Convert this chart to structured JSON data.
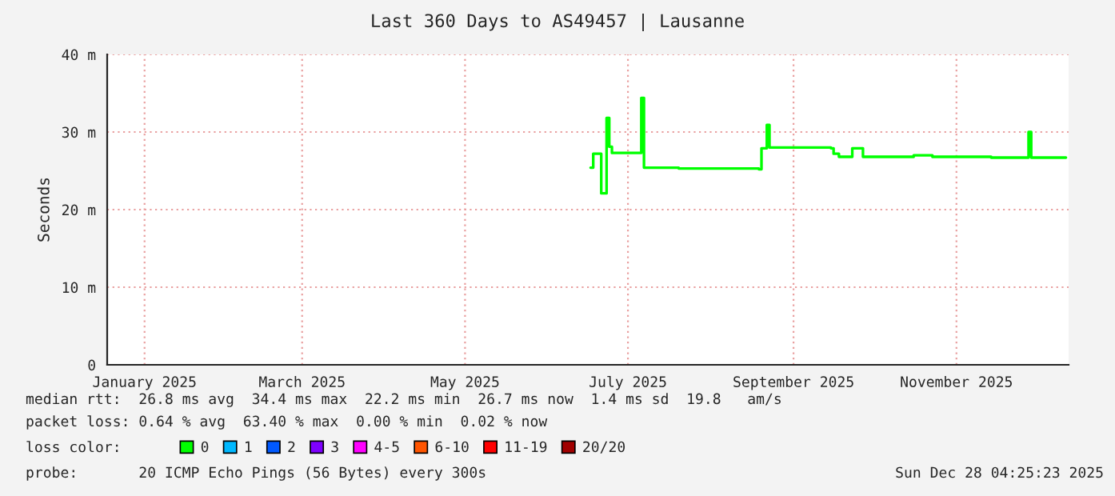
{
  "chart_data": {
    "type": "step",
    "title": "Last 360 Days to AS49457 | Lausanne",
    "ylabel": "Seconds",
    "x": [
      "2025-07-02",
      "2025-07-03",
      "2025-07-05",
      "2025-07-06",
      "2025-07-07",
      "2025-07-08",
      "2025-07-09",
      "2025-07-10",
      "2025-07-20",
      "2025-07-21",
      "2025-07-22",
      "2025-08-04",
      "2025-09-03",
      "2025-09-04",
      "2025-09-06",
      "2025-09-07",
      "2025-09-30",
      "2025-10-01",
      "2025-10-03",
      "2025-10-08",
      "2025-10-12",
      "2025-10-30",
      "2025-10-31",
      "2025-11-07",
      "2025-11-29",
      "2025-12-12",
      "2025-12-13",
      "2025-12-14",
      "2025-12-27"
    ],
    "series": [
      {
        "name": "0",
        "color": "#00ff00",
        "values": [
          25.4,
          27.2,
          27.2,
          22.1,
          22.1,
          31.8,
          28.1,
          27.3,
          27.3,
          34.4,
          25.4,
          25.3,
          25.2,
          27.9,
          30.9,
          28.0,
          27.9,
          27.2,
          26.8,
          27.9,
          26.8,
          26.8,
          27.0,
          26.8,
          26.7,
          26.7,
          30.0,
          26.7,
          26.7
        ]
      },
      {
        "name": "1",
        "color": "#00b8ff",
        "values": [
          null,
          null,
          null,
          null,
          null,
          null,
          null,
          null,
          null,
          null,
          null,
          null,
          null,
          null,
          null,
          null,
          null,
          null,
          null,
          null,
          null,
          null,
          null,
          null,
          null,
          null,
          null,
          null,
          null
        ]
      },
      {
        "name": "2",
        "color": "#0059ff",
        "values": [
          null,
          null,
          null,
          null,
          null,
          null,
          null,
          null,
          null,
          null,
          null,
          null,
          null,
          null,
          null,
          null,
          null,
          null,
          null,
          null,
          null,
          null,
          null,
          null,
          null,
          null,
          null,
          null,
          null
        ]
      },
      {
        "name": "3",
        "color": "#7e00ff",
        "values": [
          null,
          null,
          null,
          null,
          null,
          null,
          null,
          null,
          null,
          null,
          null,
          null,
          null,
          null,
          null,
          null,
          null,
          null,
          null,
          null,
          null,
          null,
          null,
          null,
          null,
          null,
          null,
          null,
          null
        ]
      },
      {
        "name": "4-5",
        "color": "#ff00ff",
        "values": [
          null,
          null,
          null,
          null,
          null,
          null,
          null,
          null,
          null,
          null,
          null,
          null,
          null,
          null,
          null,
          null,
          null,
          null,
          null,
          null,
          null,
          null,
          null,
          null,
          null,
          null,
          null,
          null,
          null
        ]
      },
      {
        "name": "6-10",
        "color": "#ff5500",
        "values": [
          null,
          null,
          null,
          null,
          null,
          null,
          null,
          null,
          null,
          null,
          null,
          null,
          null,
          null,
          null,
          null,
          null,
          null,
          null,
          null,
          null,
          null,
          null,
          null,
          null,
          null,
          null,
          null,
          null
        ]
      },
      {
        "name": "11-19",
        "color": "#ff0000",
        "values": [
          null,
          null,
          null,
          null,
          null,
          null,
          null,
          null,
          null,
          null,
          null,
          null,
          null,
          null,
          null,
          null,
          null,
          null,
          null,
          null,
          null,
          null,
          null,
          null,
          null,
          null,
          null,
          null,
          null
        ]
      },
      {
        "name": "20/20",
        "color": "#a10000",
        "values": [
          null,
          null,
          null,
          null,
          null,
          null,
          null,
          null,
          null,
          null,
          null,
          null,
          null,
          null,
          null,
          null,
          null,
          null,
          null,
          null,
          null,
          null,
          null,
          null,
          null,
          null,
          null,
          null,
          null
        ]
      }
    ],
    "legend_title": "loss color:",
    "legend": "bottom",
    "xlim": [
      "2025-01-02",
      "2025-12-28"
    ],
    "xticks": [
      {
        "value": "2025-01-16",
        "label": "January 2025"
      },
      {
        "value": "2025-03-16",
        "label": "March 2025"
      },
      {
        "value": "2025-05-16",
        "label": "May 2025"
      },
      {
        "value": "2025-07-16",
        "label": "July 2025"
      },
      {
        "value": "2025-09-16",
        "label": "September 2025"
      },
      {
        "value": "2025-11-16",
        "label": "November 2025"
      }
    ],
    "ylim": [
      0,
      40
    ],
    "yticks": [
      0,
      {
        "value": 10,
        "label": "10 m"
      },
      {
        "value": 20,
        "label": "20 m"
      },
      {
        "value": 30,
        "label": "30 m"
      },
      {
        "value": 40,
        "label": "40 m"
      }
    ],
    "grid": true,
    "annotations": [
      "median rtt:  26.8 ms avg  34.4 ms max  22.2 ms min  26.7 ms now  1.4 ms sd  19.8   am/s",
      "packet loss: 0.64 % avg  63.40 % max  0.00 % min  0.02 % now",
      "probe:       20 ICMP Echo Pings (56 Bytes) every 300s",
      "Sun Dec 28 04:25:23 2025"
    ]
  }
}
